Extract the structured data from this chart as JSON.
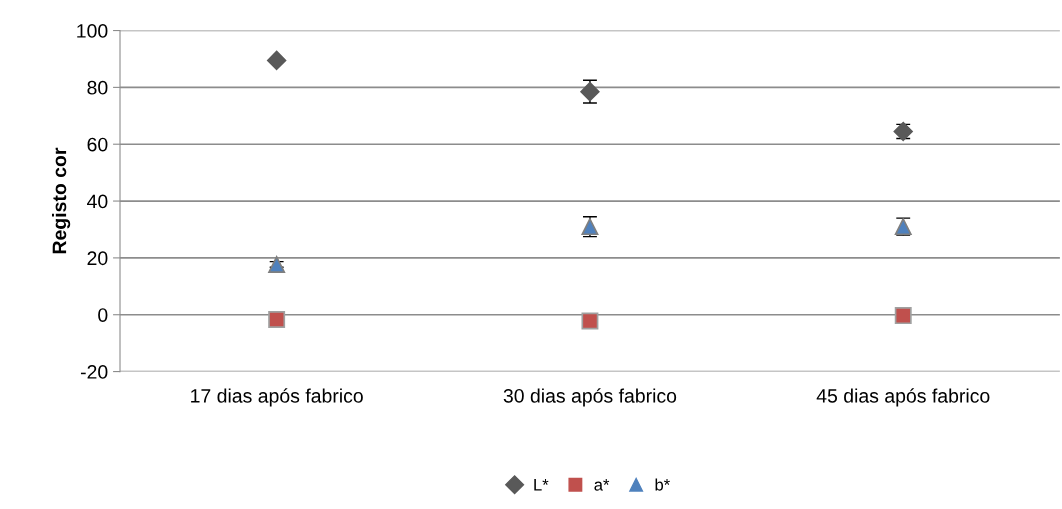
{
  "chart_data": {
    "type": "scatter",
    "ylabel": "Registo cor",
    "categories": [
      "17 dias após fabrico",
      "30 dias após fabrico",
      "45 dias após fabrico"
    ],
    "series": [
      {
        "name": "L*",
        "color": "#595959",
        "marker": "diamond",
        "values": [
          89.5,
          78.5,
          64.5
        ],
        "errors": [
          null,
          4,
          2.5
        ]
      },
      {
        "name": "a*",
        "color": "#c0504d",
        "marker": "square",
        "values": [
          -1.7,
          -2.2,
          -0.3
        ]
      },
      {
        "name": "b*",
        "color": "#4f81bd",
        "marker": "triangle",
        "values": [
          17.7,
          31,
          31
        ],
        "errors": [
          1,
          3.5,
          3
        ]
      }
    ],
    "ylim": [
      -20,
      100
    ],
    "yticks": [
      -20,
      0,
      20,
      40,
      60,
      80,
      100
    ],
    "grid": "y",
    "legend": "bottom"
  }
}
